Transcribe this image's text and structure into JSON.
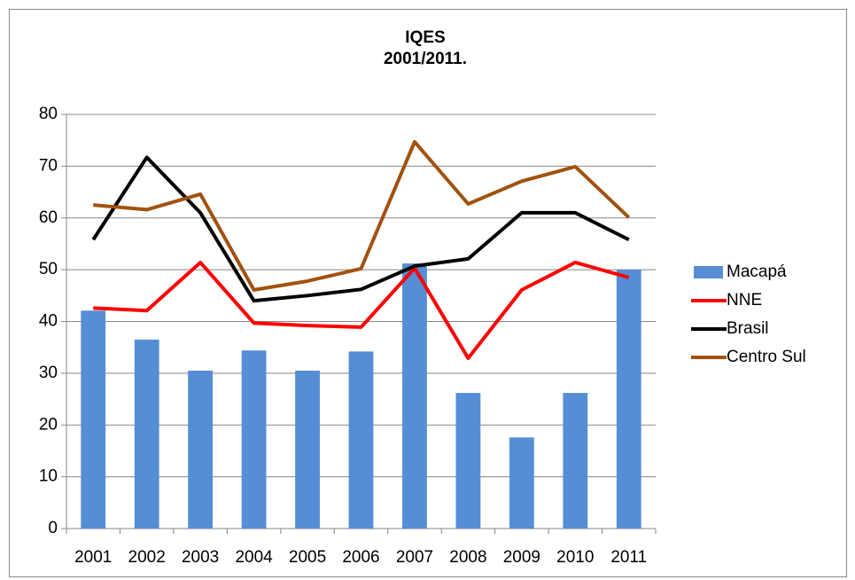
{
  "chart_data": {
    "type": "bar",
    "title": [
      "IQES",
      "2001/2011."
    ],
    "categories": [
      "2001",
      "2002",
      "2003",
      "2004",
      "2005",
      "2006",
      "2007",
      "2008",
      "2009",
      "2010",
      "2011"
    ],
    "series": [
      {
        "name": "Macapá",
        "type": "bar",
        "color": "#558ed5",
        "values": [
          42.1,
          36.5,
          30.5,
          34.4,
          30.5,
          34.2,
          51.2,
          26.2,
          17.6,
          26.2,
          50
        ]
      },
      {
        "name": "NNE",
        "type": "line",
        "color": "#ff0000",
        "values": [
          42.6,
          42.1,
          51.4,
          39.7,
          39.2,
          38.9,
          50.3,
          32.9,
          46.1,
          51.4,
          48.5
        ]
      },
      {
        "name": "Brasil",
        "type": "line",
        "color": "#000000",
        "values": [
          55.8,
          71.7,
          61,
          44,
          45,
          46.2,
          50.7,
          52.1,
          61,
          61,
          55.8
        ]
      },
      {
        "name": "Centro Sul",
        "type": "line",
        "color": "#a0520f",
        "values": [
          62.5,
          61.6,
          64.6,
          46.1,
          47.8,
          50.2,
          74.7,
          62.7,
          67.1,
          69.9,
          60.1
        ]
      }
    ],
    "ylim": [
      0,
      80
    ],
    "yticks": [
      0,
      10,
      20,
      30,
      40,
      50,
      60,
      70,
      80
    ],
    "grid": true,
    "legend": "right"
  }
}
